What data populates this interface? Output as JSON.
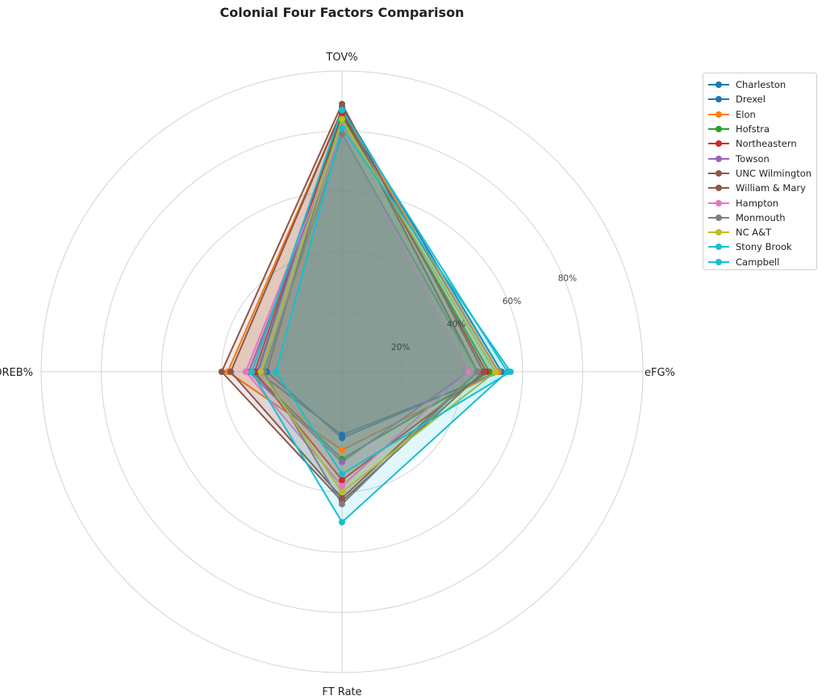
{
  "chart_data": {
    "type": "radar",
    "title": "Colonial Four Factors Comparison",
    "axes": [
      "eFG%",
      "TOV%",
      "OREB%",
      "FT Rate"
    ],
    "rmax": 100,
    "rings": [
      20,
      40,
      60,
      80,
      100
    ],
    "ring_labels": [
      "20%",
      "40%",
      "60%",
      "80%"
    ],
    "legend_position": "upper-right-outside",
    "series": [
      {
        "name": "Charleston",
        "color": "#1f77b4",
        "values": [
          53,
          88,
          28,
          21
        ]
      },
      {
        "name": "Drexel",
        "color": "#1f77b4",
        "values": [
          52,
          86,
          25,
          22
        ]
      },
      {
        "name": "Elon",
        "color": "#ff7f0e",
        "values": [
          52,
          87,
          38,
          26
        ]
      },
      {
        "name": "Hofstra",
        "color": "#2ca02c",
        "values": [
          49,
          85,
          30,
          29
        ]
      },
      {
        "name": "Northeastern",
        "color": "#d62728",
        "values": [
          48,
          86,
          29,
          36
        ]
      },
      {
        "name": "Towson",
        "color": "#9467bd",
        "values": [
          42,
          80,
          31,
          30
        ]
      },
      {
        "name": "UNC Wilmington",
        "color": "#8c564b",
        "values": [
          45,
          87,
          37,
          42
        ]
      },
      {
        "name": "William & Mary",
        "color": "#8c564b",
        "values": [
          47,
          89,
          40,
          43
        ]
      },
      {
        "name": "Hampton",
        "color": "#e377c2",
        "values": [
          42,
          80,
          32,
          38
        ]
      },
      {
        "name": "Monmouth",
        "color": "#7f7f7f",
        "values": [
          45,
          79,
          26,
          44
        ]
      },
      {
        "name": "NC A&T",
        "color": "#bcbd22",
        "values": [
          51,
          84,
          27,
          40
        ]
      },
      {
        "name": "Stony Brook",
        "color": "#17becf",
        "values": [
          55,
          87,
          30,
          50
        ]
      },
      {
        "name": "Campbell",
        "color": "#17becf",
        "values": [
          56,
          81,
          22,
          34
        ]
      }
    ]
  }
}
